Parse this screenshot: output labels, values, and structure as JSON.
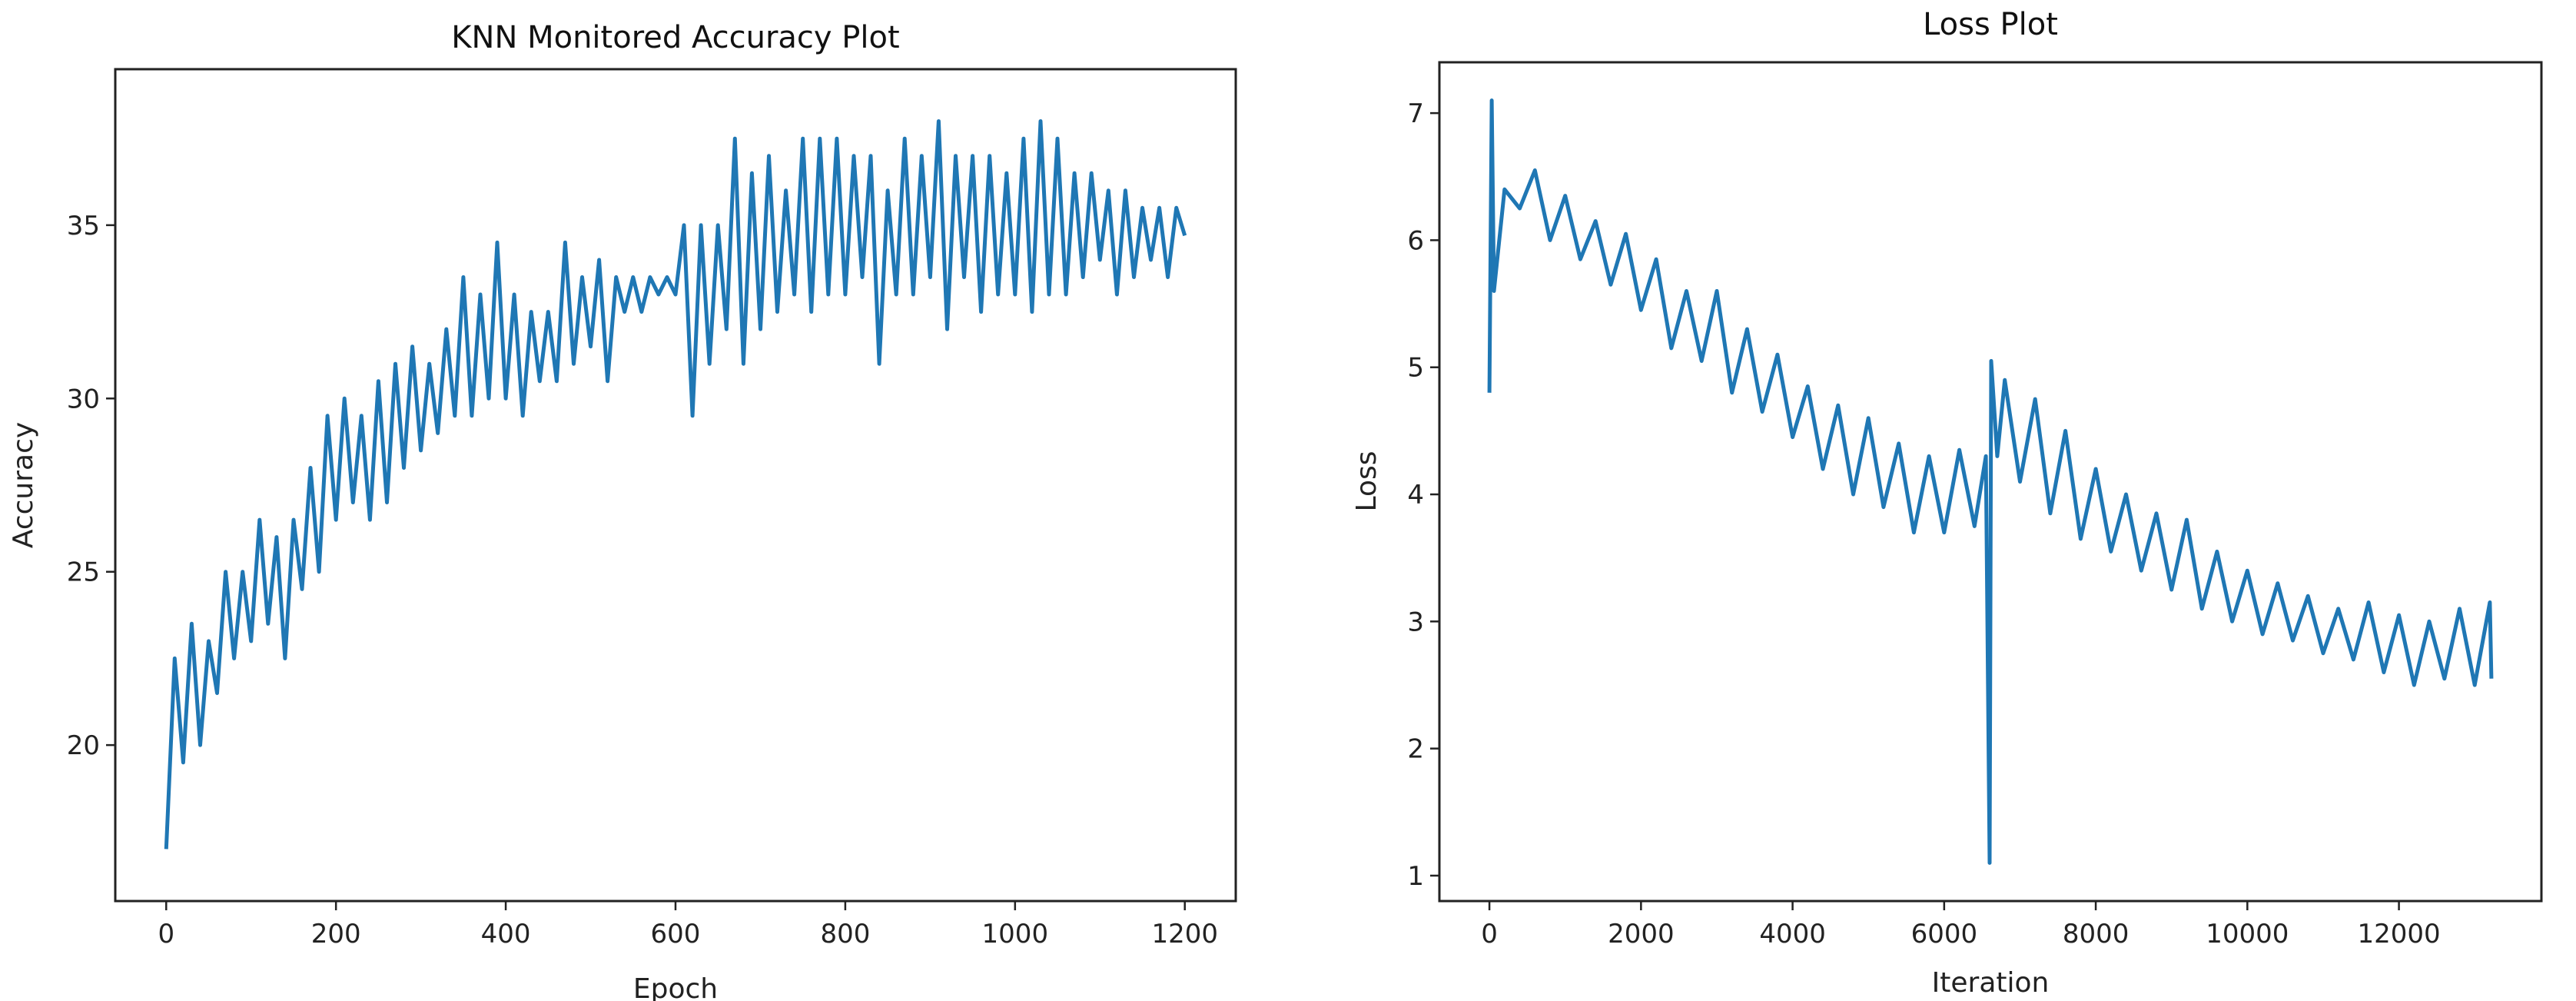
{
  "chart_data": [
    {
      "type": "line",
      "title": "KNN Monitored Accuracy Plot",
      "xlabel": "Epoch",
      "ylabel": "Accuracy",
      "xlim": [
        -60,
        1260
      ],
      "ylim": [
        15.5,
        39.5
      ],
      "xticks": [
        0,
        200,
        400,
        600,
        800,
        1000,
        1200
      ],
      "yticks": [
        20,
        25,
        30,
        35
      ],
      "grid": false,
      "color": "#1f77b4",
      "x": [
        0,
        10,
        20,
        30,
        40,
        50,
        60,
        70,
        80,
        90,
        100,
        110,
        120,
        130,
        140,
        150,
        160,
        170,
        180,
        190,
        200,
        210,
        220,
        230,
        240,
        250,
        260,
        270,
        280,
        290,
        300,
        310,
        320,
        330,
        340,
        350,
        360,
        370,
        380,
        390,
        400,
        410,
        420,
        430,
        440,
        450,
        460,
        470,
        480,
        490,
        500,
        510,
        520,
        530,
        540,
        550,
        560,
        570,
        580,
        590,
        600,
        610,
        620,
        630,
        640,
        650,
        660,
        670,
        680,
        690,
        700,
        710,
        720,
        730,
        740,
        750,
        760,
        770,
        780,
        790,
        800,
        810,
        820,
        830,
        840,
        850,
        860,
        870,
        880,
        890,
        900,
        910,
        920,
        930,
        940,
        950,
        960,
        970,
        980,
        990,
        1000,
        1010,
        1020,
        1030,
        1040,
        1050,
        1060,
        1070,
        1080,
        1090,
        1100,
        1110,
        1120,
        1130,
        1140,
        1150,
        1160,
        1170,
        1180,
        1190,
        1200
      ],
      "y": [
        17,
        22.5,
        19.5,
        23.5,
        20,
        23,
        21.5,
        25,
        22.5,
        25,
        23,
        26.5,
        23.5,
        26,
        22.5,
        26.5,
        24.5,
        28,
        25,
        29.5,
        26.5,
        30,
        27,
        29.5,
        26.5,
        30.5,
        27,
        31,
        28,
        31.5,
        28.5,
        31,
        29,
        32,
        29.5,
        33.5,
        29.5,
        33,
        30,
        34.5,
        30,
        33,
        29.5,
        32.5,
        30.5,
        32.5,
        30.5,
        34.5,
        31,
        33.5,
        31.5,
        34,
        30.5,
        33.5,
        32.5,
        33.5,
        32.5,
        33.5,
        33,
        33.5,
        33,
        35,
        29.5,
        35,
        31,
        35,
        32,
        37.5,
        31,
        36.5,
        32,
        37,
        32.5,
        36,
        33,
        37.5,
        32.5,
        37.5,
        33,
        37.5,
        33,
        37,
        33.5,
        37,
        31,
        36,
        33,
        37.5,
        33,
        37,
        33.5,
        38,
        32,
        37,
        33.5,
        37,
        32.5,
        37,
        33,
        36.5,
        33,
        37.5,
        32.5,
        38,
        33,
        37.5,
        33,
        36.5,
        33.5,
        36.5,
        34,
        36,
        33,
        36,
        33.5,
        35.5,
        34,
        35.5,
        33.5,
        35.5,
        34.7
      ]
    },
    {
      "type": "line",
      "title": "Loss Plot",
      "xlabel": "Iteration",
      "ylabel": "Loss",
      "xlim": [
        -660,
        13880
      ],
      "ylim": [
        0.8,
        7.4
      ],
      "xticks": [
        0,
        2000,
        4000,
        6000,
        8000,
        10000,
        12000
      ],
      "yticks": [
        1,
        2,
        3,
        4,
        5,
        6,
        7
      ],
      "grid": false,
      "color": "#1f77b4",
      "x": [
        0,
        30,
        60,
        200,
        400,
        600,
        800,
        1000,
        1200,
        1400,
        1600,
        1800,
        2000,
        2200,
        2400,
        2600,
        2800,
        3000,
        3200,
        3400,
        3600,
        3800,
        4000,
        4200,
        4400,
        4600,
        4800,
        5000,
        5200,
        5400,
        5600,
        5800,
        6000,
        6200,
        6400,
        6550,
        6600,
        6620,
        6700,
        6800,
        7000,
        7200,
        7400,
        7600,
        7800,
        8000,
        8200,
        8400,
        8600,
        8800,
        9000,
        9200,
        9400,
        9600,
        9800,
        10000,
        10200,
        10400,
        10600,
        10800,
        11000,
        11200,
        11400,
        11600,
        11800,
        12000,
        12200,
        12400,
        12600,
        12800,
        13000,
        13200,
        13220
      ],
      "y": [
        4.8,
        7.1,
        5.6,
        6.4,
        6.25,
        6.55,
        6.0,
        6.35,
        5.85,
        6.15,
        5.65,
        6.05,
        5.45,
        5.85,
        5.15,
        5.6,
        5.05,
        5.6,
        4.8,
        5.3,
        4.65,
        5.1,
        4.45,
        4.85,
        4.2,
        4.7,
        4.0,
        4.6,
        3.9,
        4.4,
        3.7,
        4.3,
        3.7,
        4.35,
        3.75,
        4.3,
        1.1,
        5.05,
        4.3,
        4.9,
        4.1,
        4.75,
        3.85,
        4.5,
        3.65,
        4.2,
        3.55,
        4.0,
        3.4,
        3.85,
        3.25,
        3.8,
        3.1,
        3.55,
        3.0,
        3.4,
        2.9,
        3.3,
        2.85,
        3.2,
        2.75,
        3.1,
        2.7,
        3.15,
        2.6,
        3.05,
        2.5,
        3.0,
        2.55,
        3.1,
        2.5,
        3.15,
        2.55
      ]
    }
  ]
}
